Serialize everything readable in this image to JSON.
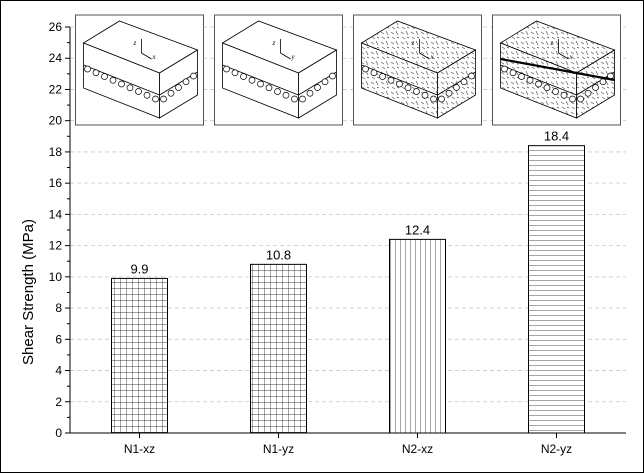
{
  "chart_data": {
    "type": "bar",
    "categories": [
      "N1-xz",
      "N1-yz",
      "N2-xz",
      "N2-yz"
    ],
    "values": [
      9.9,
      10.8,
      12.4,
      18.4
    ],
    "value_labels": [
      "9.9",
      "10.8",
      "12.4",
      "18.4"
    ],
    "ylabel": "Shear Strength (MPa)",
    "xlabel": "",
    "title": "",
    "ylim": [
      0,
      26
    ],
    "y_ticks": [
      0,
      2,
      4,
      6,
      8,
      10,
      12,
      14,
      16,
      18,
      20,
      22,
      24,
      26
    ],
    "grid": "horizontal dashed",
    "bar_patterns": [
      "grid",
      "grid",
      "vertical-lines",
      "horizontal-lines"
    ],
    "inset_axis_letters": [
      [
        "z",
        "x"
      ],
      [
        "z",
        "y"
      ],
      [
        "z",
        "x"
      ],
      [
        "z",
        "x"
      ]
    ],
    "colors": {
      "bar_fill": "#ffffff",
      "bar_stroke": "#000000",
      "grid": "#c8c8c8"
    }
  }
}
